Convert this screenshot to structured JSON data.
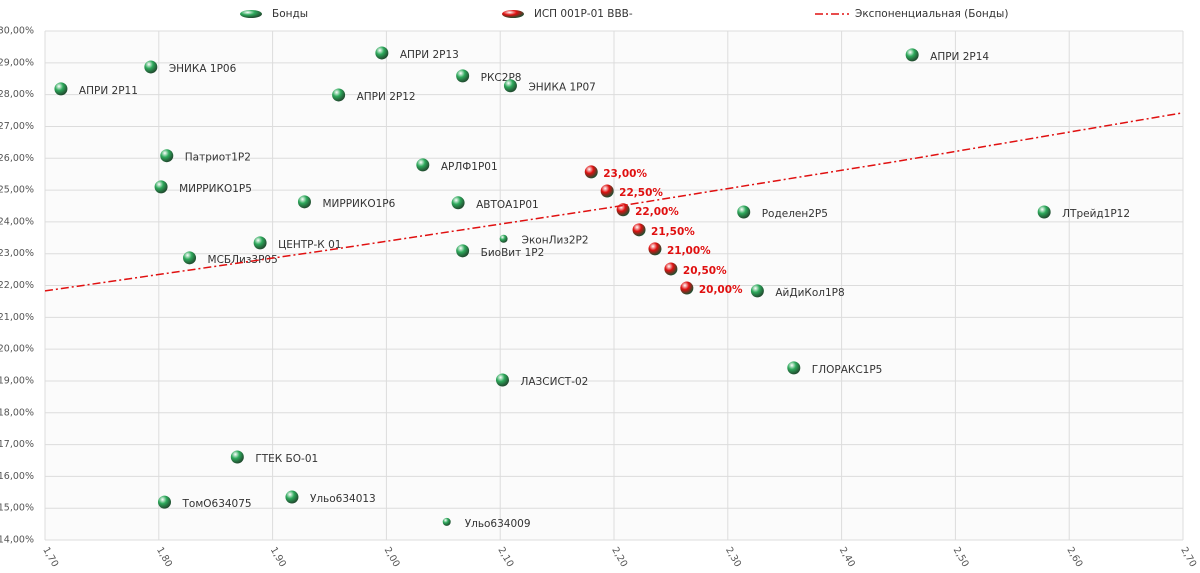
{
  "chart_data": {
    "type": "scatter",
    "xlim": [
      1.7,
      2.7
    ],
    "ylim": [
      14,
      30
    ],
    "xticks": [
      {
        "value": 1.7,
        "label": "1,70"
      },
      {
        "value": 1.8,
        "label": "1,80"
      },
      {
        "value": 1.9,
        "label": "1,90"
      },
      {
        "value": 2.0,
        "label": "2,00"
      },
      {
        "value": 2.1,
        "label": "2,10"
      },
      {
        "value": 2.2,
        "label": "2,20"
      },
      {
        "value": 2.3,
        "label": "2,30"
      },
      {
        "value": 2.4,
        "label": "2,40"
      },
      {
        "value": 2.5,
        "label": "2,50"
      },
      {
        "value": 2.6,
        "label": "2,60"
      },
      {
        "value": 2.7,
        "label": "2,70"
      }
    ],
    "yticks": [
      {
        "value": 14,
        "label": "14,00%"
      },
      {
        "value": 15,
        "label": "15,00%"
      },
      {
        "value": 16,
        "label": "16,00%"
      },
      {
        "value": 17,
        "label": "17,00%"
      },
      {
        "value": 18,
        "label": "18,00%"
      },
      {
        "value": 19,
        "label": "19,00%"
      },
      {
        "value": 20,
        "label": "20,00%"
      },
      {
        "value": 21,
        "label": "21,00%"
      },
      {
        "value": 22,
        "label": "22,00%"
      },
      {
        "value": 23,
        "label": "23,00%"
      },
      {
        "value": 24,
        "label": "24,00%"
      },
      {
        "value": 25,
        "label": "25,00%"
      },
      {
        "value": 26,
        "label": "26,00%"
      },
      {
        "value": 27,
        "label": "27,00%"
      },
      {
        "value": 28,
        "label": "28,00%"
      },
      {
        "value": 29,
        "label": "29,00%"
      },
      {
        "value": 30,
        "label": "30,00%"
      }
    ],
    "grid": true,
    "legend": "top",
    "series": [
      {
        "name": "Бонды",
        "color": "#2eaa5c",
        "x": [
          1.714,
          1.793,
          1.996,
          2.067,
          2.109,
          1.958,
          2.462,
          1.807,
          2.032,
          1.802,
          1.928,
          2.063,
          2.314,
          2.578,
          2.103,
          1.889,
          2.067,
          1.827,
          2.326,
          2.358,
          2.102,
          1.869,
          1.917,
          1.805,
          2.053
        ],
        "values": [
          28.18,
          28.87,
          29.31,
          28.59,
          28.28,
          27.99,
          29.25,
          26.08,
          25.79,
          25.1,
          24.63,
          24.6,
          24.31,
          24.31,
          23.47,
          23.34,
          23.09,
          22.87,
          21.83,
          19.41,
          19.03,
          16.61,
          15.35,
          15.19,
          14.57
        ],
        "sizes": [
          12,
          12,
          12,
          12,
          12,
          12,
          12,
          12,
          12,
          12,
          12,
          12,
          12,
          12,
          7,
          12,
          12,
          12,
          12,
          12,
          12,
          12,
          12,
          12,
          7
        ],
        "point_labels": [
          "АПРИ 2Р11",
          "ЭНИКА 1Р06",
          "АПРИ 2Р13",
          "РКС2Р8",
          "ЭНИКА 1Р07",
          "АПРИ 2Р12",
          "АПРИ 2Р14",
          "Патриот1Р2",
          "АРЛФ1Р01",
          "МИРРИКО1Р5",
          "МИРРИКО1Р6",
          "АВТОА1Р01",
          "Роделен2Р5",
          "ЛТрейд1Р12",
          "ЭконЛиз2Р2",
          "ЦЕНТР-К 01",
          "БиоВит 1Р2",
          "МСБЛиз3Р05",
          "АйДиКол1Р8",
          "ГЛОРАКС1Р5",
          "ЛАЗСИСТ-02",
          "ГТЕК БО-01",
          "Ульо634013",
          "ТомО634075",
          "Ульо634009"
        ]
      },
      {
        "name": "ИСП 001Р-01 BBB-",
        "color": "#e01010",
        "x": [
          2.18,
          2.194,
          2.208,
          2.222,
          2.236,
          2.25,
          2.264
        ],
        "values": [
          25.57,
          24.97,
          24.38,
          23.75,
          23.15,
          22.52,
          21.92
        ],
        "sizes": [
          12,
          12,
          12,
          12,
          12,
          12,
          12
        ],
        "point_labels": [
          "23,00%",
          "22,50%",
          "22,00%",
          "21,50%",
          "21,00%",
          "20,50%",
          "20,00%"
        ]
      },
      {
        "name": "Экспоненциальная (Бонды)",
        "color": "#e01010",
        "kind": "trendline",
        "x": [
          1.7,
          1.95,
          2.2,
          2.45,
          2.7
        ],
        "values": [
          21.83,
          23.12,
          24.47,
          25.91,
          27.43
        ]
      }
    ]
  }
}
